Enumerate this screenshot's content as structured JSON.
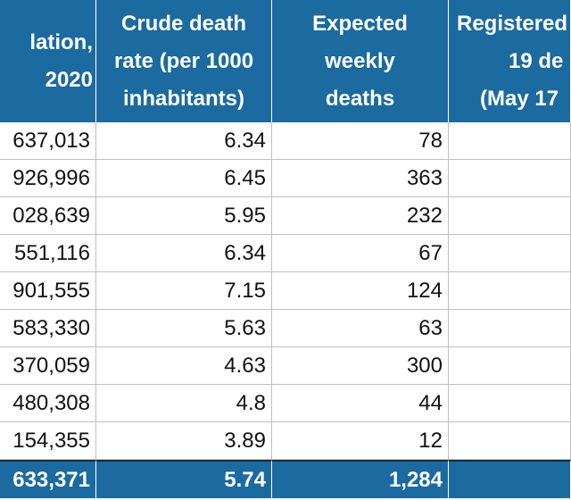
{
  "table": {
    "header": [
      [
        "lation,",
        "2020"
      ],
      [
        "Crude death",
        "rate (per 1000",
        "inhabitants)"
      ],
      [
        "Expected",
        "weekly",
        "deaths"
      ],
      [
        "Registered",
        "19 de",
        "(May 17"
      ]
    ],
    "rows": [
      [
        "637,013",
        "6.34",
        "78",
        ""
      ],
      [
        "926,996",
        "6.45",
        "363",
        ""
      ],
      [
        "028,639",
        "5.95",
        "232",
        ""
      ],
      [
        "551,116",
        "6.34",
        "67",
        ""
      ],
      [
        "901,555",
        "7.15",
        "124",
        ""
      ],
      [
        "583,330",
        "5.63",
        "63",
        ""
      ],
      [
        "370,059",
        "4.63",
        "300",
        ""
      ],
      [
        "480,308",
        "4.8",
        "44",
        ""
      ],
      [
        "154,355",
        "3.89",
        "12",
        ""
      ]
    ],
    "total": [
      "633,371",
      "5.74",
      "1,284",
      ""
    ]
  }
}
